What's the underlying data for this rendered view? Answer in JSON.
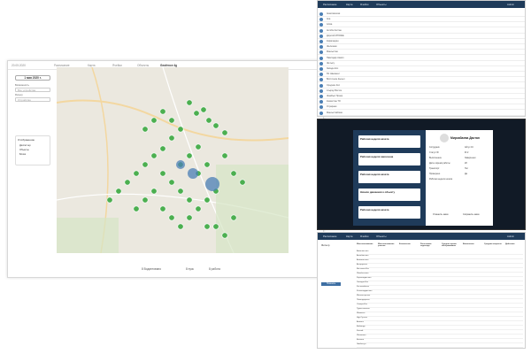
{
  "map_window": {
    "topbar_left": "20.05.2020",
    "topbar_tabs": [
      "Расписание",
      "Карта",
      "Ячейки",
      "Объекты"
    ],
    "topbar_title": "Geofence 4g",
    "date": "1 мая 2020 г.",
    "filter_label": "Возможность",
    "filter_value": "Все устройства",
    "type_label": "Фильтр",
    "type_value": "Устройства",
    "display_title": "Отображение",
    "display_items": [
      "Диспетчер",
      "Объекты",
      "Блоки"
    ],
    "bottom_stats": [
      "8 Водаптовано",
      "8 пуск",
      "8 работа"
    ]
  },
  "timeline_window": {
    "nav_items": [
      "Расписание",
      "Карта",
      "Ячейки",
      "Объекты"
    ],
    "user": "Admin",
    "rows": [
      "Акмолинская",
      "Ака",
      "Алма",
      "Актобе Костан",
      "Дорогой ИНОЖЕ",
      "Карагандин",
      "Железная",
      "Мангыстая",
      "Павлодар Акмол",
      "Жетысу",
      "Западн Кос",
      "Юг Шымкент",
      "Восточное Кызыл",
      "Средние Кос",
      "Атырау Восток",
      "Жамбыл Приор",
      "Казахстан ТО",
      "Отрарная",
      "Мангыстайская"
    ]
  },
  "dialog_window": {
    "steps": [
      "Рабочая неделя начата",
      "Рабочая неделя закончена",
      "Рабочая неделя начата",
      "Начало движения к объекту",
      "Рабочая неделя начата"
    ],
    "title": "Мирзабаева Дастан",
    "fields": [
      [
        "Сотрудник",
        "Айтух 16"
      ],
      [
        "Статус ID",
        "ID 2"
      ],
      [
        "Выполнение",
        "Завершено"
      ],
      [
        "Дата и время работы",
        "28"
      ],
      [
        "Транспорт",
        "Нет"
      ],
      [
        "Проверено",
        "Да"
      ],
      [
        "Рабочая неделя начата",
        ""
      ]
    ],
    "buttons": [
      "Отменить заказ",
      "Сохранить заказ"
    ]
  },
  "list_window": {
    "nav_items": [
      "Расписание",
      "Карта",
      "Ячейки",
      "Объекты"
    ],
    "user": "Admin",
    "filter_title": "Фильтр",
    "apply_button": "Показать",
    "headers": [
      "Местоположение",
      "Местоположение участка",
      "Количество",
      "Расстояние подъезда",
      "Среднее время обслуживания",
      "Выполнено",
      "Средняя скорость",
      "Действия"
    ],
    "rows": [
      "Акмолинская",
      "Актюбинская",
      "Алматинская",
      "Атырауская",
      "Восточно-Каз",
      "Жамбылская",
      "Карагандинская",
      "Западно-Каз",
      "Костанайская",
      "Кызылординская",
      "Мангистауская",
      "Павлодарская",
      "Северо-Каз",
      "Туркестанская",
      "Шымкент",
      "Нур-Султан",
      "Алматы",
      "Байконур",
      "Каспий",
      "Жанаозен",
      "Балхаш",
      "Экибастуз"
    ]
  },
  "colors": {
    "nav": "#1f3b5a",
    "marker": "#4caf50",
    "accent": "#4b7fb5"
  }
}
